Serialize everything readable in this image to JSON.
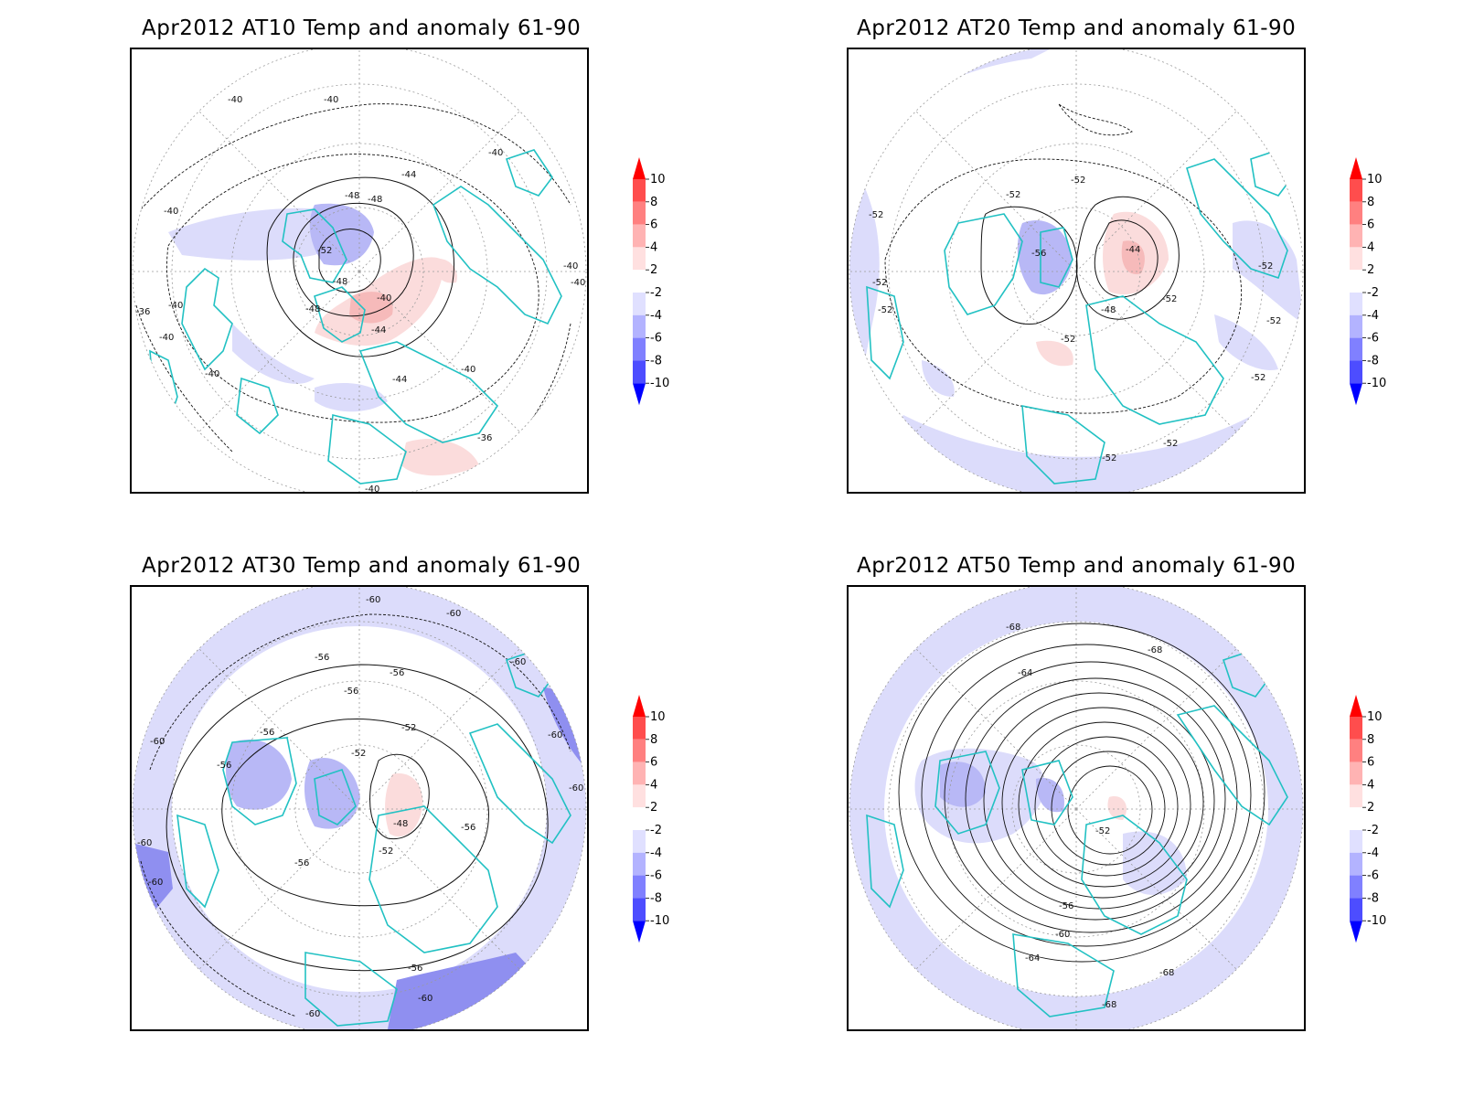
{
  "panels": [
    {
      "id": "at10",
      "title": "Apr2012 AT10 Temp and anomaly 61-90",
      "contour_labels": [
        "-40",
        "-40",
        "-40",
        "-44",
        "-48",
        "-48",
        "-52",
        "-48",
        "-48",
        "-40",
        "-44",
        "-40",
        "-44",
        "-40",
        "-36",
        "-40",
        "-40",
        "-36",
        "-40",
        "-40",
        "-40",
        "-40"
      ]
    },
    {
      "id": "at20",
      "title": "Apr2012 AT20 Temp and anomaly 61-90",
      "contour_labels": [
        "-52",
        "-52",
        "-52",
        "-52",
        "-56",
        "-44",
        "-48",
        "-52",
        "-52",
        "-52",
        "-52",
        "-52",
        "-52",
        "-52",
        "-52"
      ]
    },
    {
      "id": "at30",
      "title": "Apr2012 AT30 Temp and anomaly 61-90",
      "contour_labels": [
        "-60",
        "-60",
        "-56",
        "-56",
        "-56",
        "-56",
        "-60",
        "-56",
        "-52",
        "-52",
        "-48",
        "-56",
        "-52",
        "-56",
        "-60",
        "-60",
        "-60",
        "-56",
        "-60",
        "-60",
        "-60",
        "-60"
      ]
    },
    {
      "id": "at50",
      "title": "Apr2012 AT50 Temp and anomaly 61-90",
      "contour_labels": [
        "-68",
        "-68",
        "-64",
        "-52",
        "-56",
        "-60",
        "-64",
        "-68",
        "-68"
      ]
    }
  ],
  "colorbar": {
    "labels": [
      "10",
      "8",
      "6",
      "4",
      "2",
      "-2",
      "-4",
      "-6",
      "-8",
      "-10"
    ],
    "colors": [
      "#ff0000",
      "#ff4d4d",
      "#ff8080",
      "#ffb3b3",
      "#ffe0e0",
      "#ffffff",
      "#e0e0ff",
      "#b3b3ff",
      "#8080ff",
      "#4d4dff",
      "#0000ff"
    ]
  },
  "colors": {
    "coastline": "#22c1c3",
    "anomaly_blue_light": "#dcdcfb",
    "anomaly_blue_mid": "#b8b8f6",
    "anomaly_blue_dark": "#8f8ff0",
    "anomaly_red_light": "#fbdcdc",
    "anomaly_red_mid": "#f6baba",
    "contour": "#111111",
    "grid": "#9a9a9a"
  }
}
